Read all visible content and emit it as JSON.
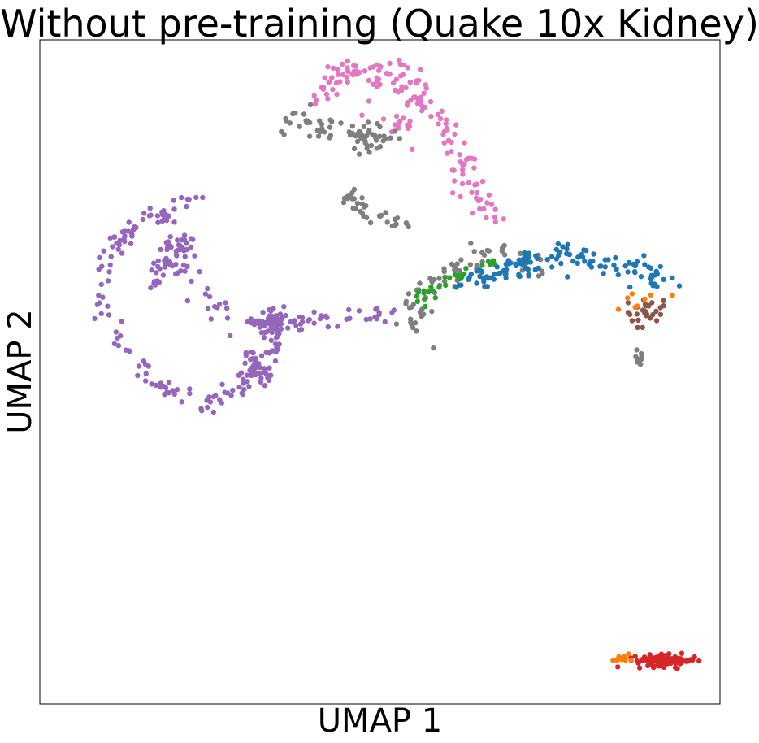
{
  "chart_data": {
    "type": "scatter",
    "title": "Without pre-training (Quake 10x Kidney)",
    "xlabel": "UMAP 1",
    "ylabel": "UMAP 2",
    "xlim": [
      0,
      100
    ],
    "ylim": [
      0,
      100
    ],
    "ticks": "none",
    "grid": false,
    "legend": "none",
    "clusters": [
      {
        "color": "#9467bd",
        "n": 170,
        "segments": [
          [
            10,
            68,
            9,
            65
          ],
          [
            9,
            65,
            9.5,
            59
          ],
          [
            9.5,
            59,
            13,
            52
          ],
          [
            13,
            52,
            18,
            47.5
          ],
          [
            18,
            47.5,
            25,
            45
          ],
          [
            25,
            45,
            30,
            48
          ],
          [
            30,
            48,
            34,
            53
          ],
          [
            34,
            53,
            35,
            58
          ],
          [
            10,
            68,
            13,
            71
          ],
          [
            13,
            71,
            18,
            74
          ],
          [
            18,
            74,
            23,
            77
          ],
          [
            20,
            70,
            16,
            62
          ],
          [
            25,
            62,
            29,
            55
          ]
        ],
        "spread": 0.8
      },
      {
        "color": "#9467bd",
        "n": 60,
        "blob": [
          34,
          57.5,
          2.2,
          1.6
        ]
      },
      {
        "color": "#9467bd",
        "n": 45,
        "blob": [
          32,
          50.5,
          1.8,
          2.2
        ]
      },
      {
        "color": "#9467bd",
        "n": 45,
        "blob": [
          20,
          67,
          3,
          3.5
        ]
      },
      {
        "color": "#9467bd",
        "n": 35,
        "segments": [
          [
            37,
            57.5,
            42,
            58.5
          ],
          [
            42,
            57.5,
            47,
            59
          ],
          [
            47,
            59,
            53,
            58
          ]
        ],
        "spread": 0.6
      },
      {
        "color": "#e377c2",
        "n": 150,
        "segments": [
          [
            41,
            92,
            45,
            95
          ],
          [
            45,
            95,
            51,
            95
          ],
          [
            51,
            95,
            56,
            92
          ],
          [
            56,
            92,
            60,
            86
          ],
          [
            60,
            86,
            63,
            79
          ],
          [
            63,
            79,
            67,
            73
          ]
        ],
        "spread": 1.1
      },
      {
        "color": "#e377c2",
        "n": 20,
        "blob": [
          53,
          88,
          3,
          3
        ]
      },
      {
        "color": "#7f7f7f",
        "n": 70,
        "segments": [
          [
            36,
            89,
            41,
            87
          ],
          [
            41,
            87,
            47,
            85
          ],
          [
            47,
            85,
            51,
            86
          ]
        ],
        "spread": 1.1
      },
      {
        "color": "#7f7f7f",
        "n": 35,
        "segments": [
          [
            45,
            77,
            48,
            74
          ],
          [
            48,
            74,
            54,
            72
          ]
        ],
        "spread": 0.7
      },
      {
        "color": "#7f7f7f",
        "n": 70,
        "segments": [
          [
            54,
            56,
            56,
            62
          ],
          [
            56,
            62,
            61,
            66
          ],
          [
            61,
            66,
            66,
            68
          ],
          [
            66,
            68,
            75,
            66
          ]
        ],
        "spread": 1.1
      },
      {
        "color": "#7f7f7f",
        "n": 8,
        "blob": [
          88,
          52,
          0.8,
          1.2
        ]
      },
      {
        "color": "#2ca02c",
        "n": 30,
        "segments": [
          [
            55,
            60,
            58,
            63
          ],
          [
            58,
            63,
            63,
            65
          ],
          [
            63,
            65,
            67,
            67
          ]
        ],
        "spread": 0.6
      },
      {
        "color": "#1f77b4",
        "n": 130,
        "segments": [
          [
            62,
            63,
            68,
            65
          ],
          [
            68,
            65,
            73,
            67
          ],
          [
            73,
            67,
            80,
            67
          ],
          [
            80,
            67,
            88,
            66
          ],
          [
            88,
            66,
            93,
            63
          ]
        ],
        "spread": 1.1
      },
      {
        "color": "#8c564b",
        "n": 30,
        "blob": [
          89,
          59,
          2.2,
          1.8
        ]
      },
      {
        "color": "#ff7f0e",
        "n": 8,
        "blob": [
          88,
          61,
          2.5,
          2
        ]
      },
      {
        "color": "#d62728",
        "n": 100,
        "blob": [
          92,
          6.5,
          3.5,
          0.7
        ]
      },
      {
        "color": "#ff7f0e",
        "n": 10,
        "blob": [
          85.5,
          7,
          1,
          0.6
        ]
      }
    ]
  }
}
